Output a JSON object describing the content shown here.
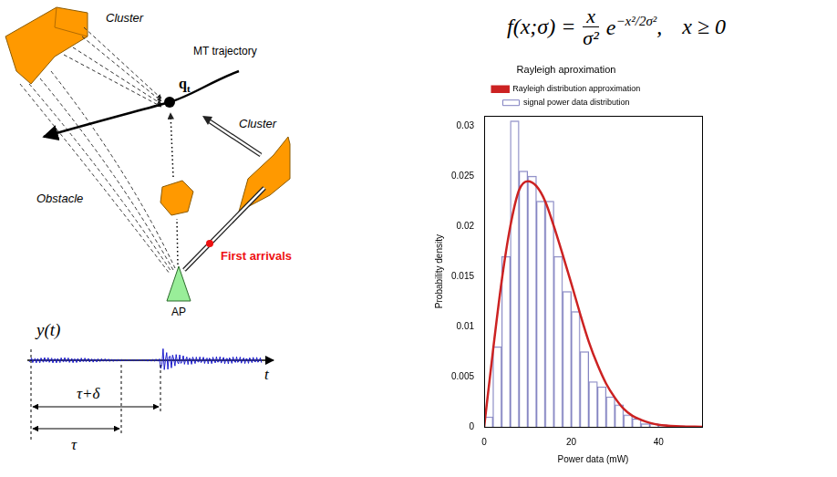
{
  "diagram": {
    "clusters": [
      "Cluster",
      "Cluster"
    ],
    "mt_trajectory": "MT trajectory",
    "position": {
      "symbol": "q",
      "subscript": "t"
    },
    "obstacle": "Obstacle",
    "first_arrivals": "First arrivals",
    "access_point": "AP"
  },
  "signal": {
    "label": "y(t)",
    "axis": "t",
    "intervals": [
      "τ+δ",
      "τ"
    ]
  },
  "formula": {
    "lhs": "f(x;σ) =",
    "numerator": "x",
    "denominator": "σ²",
    "base": "e",
    "exponent": "−x²/2σ²",
    "punctuation": ",",
    "condition": "x ≥ 0"
  },
  "chart_data": {
    "type": "histogram",
    "title": "Rayleigh aproximation",
    "x_label": "Power data (mW)",
    "y_label": "Probability density",
    "bins": [
      0,
      2,
      4,
      6,
      8,
      10,
      12,
      14,
      16,
      18,
      20,
      22,
      24,
      26,
      28,
      30,
      32,
      34,
      36,
      38,
      40,
      42,
      44,
      46,
      48,
      50
    ],
    "series": [
      {
        "name": "signal power data distribution",
        "type": "bar",
        "color": "#8080c0",
        "values": [
          0.001,
          0.008,
          0.017,
          0.0305,
          0.0255,
          0.025,
          0.0225,
          0.0225,
          0.017,
          0.0135,
          0.0115,
          0.0075,
          0.0045,
          0.004,
          0.003,
          0.0022,
          0.0012,
          0.0008,
          0.0003,
          0.0003,
          0.0002,
          0.0001,
          0.0001,
          0,
          0
        ]
      },
      {
        "name": "Rayleigh distribution approximation",
        "type": "line",
        "color": "#cc2222",
        "x": [
          0,
          2,
          4,
          6,
          8,
          10,
          12,
          14,
          16,
          18,
          20,
          22,
          24,
          26,
          28,
          30,
          32,
          34,
          36,
          38,
          40,
          45,
          50
        ],
        "values": [
          0,
          0.0075,
          0.0145,
          0.02,
          0.0236,
          0.0245,
          0.024,
          0.0225,
          0.02,
          0.0172,
          0.0143,
          0.0113,
          0.0085,
          0.0062,
          0.0043,
          0.0029,
          0.0018,
          0.0011,
          0.0007,
          0.0004,
          0.0002,
          5e-05,
          0
        ]
      }
    ],
    "xlim": [
      0,
      50
    ],
    "xticks": [
      0,
      20,
      40
    ],
    "ylim": [
      0,
      0.031
    ],
    "yticks": [
      0,
      0.005,
      0.01,
      0.015,
      0.02,
      0.025,
      0.03
    ],
    "grid": false,
    "legend": "top"
  }
}
